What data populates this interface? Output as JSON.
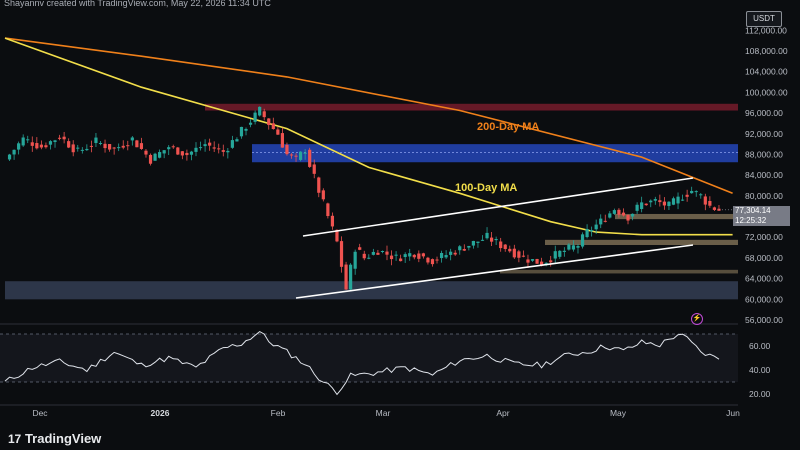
{
  "header": {
    "creator": "Shayannv created with TradingView.com, May 22, 2026 11:34 UTC"
  },
  "currency": "USDT",
  "current_price": {
    "value": "77,304.14",
    "countdown": "12:25:32"
  },
  "annotations": {
    "ma200": "200-Day MA",
    "ma100": "100-Day MA"
  },
  "footer": {
    "logo": "17",
    "brand": "TradingView"
  },
  "colors": {
    "background": "#0b0d10",
    "up": "#26a69a",
    "down": "#ef5350",
    "ma200": "#f0801a",
    "ma100": "#f2de4a",
    "red_zone": "#b2243a",
    "blue_zone": "#2447b8",
    "support_zone": "#4a5a78",
    "channel": "#ffffff",
    "tan_zone": "#8b7a5c",
    "rsi": "#dfe3ea"
  },
  "chart_data": [
    {
      "type": "candlestick",
      "xlabel": "",
      "ylabel": "",
      "x_ticks": [
        "Dec",
        "2026",
        "Feb",
        "Mar",
        "Apr",
        "May",
        "Jun"
      ],
      "y_ticks": [
        "112,000.00",
        "108,000.00",
        "104,000.00",
        "100,000.00",
        "96,000.00",
        "92,000.00",
        "88,000.00",
        "84,000.00",
        "80,000.00",
        "72,000.00",
        "68,000.00",
        "64,000.00",
        "60,000.00",
        "56,000.00"
      ],
      "ylim": [
        54000,
        116000
      ],
      "close_series_approx": [
        [
          0,
          87000
        ],
        [
          4,
          91000
        ],
        [
          8,
          89500
        ],
        [
          12,
          91500
        ],
        [
          16,
          88500
        ],
        [
          20,
          90500
        ],
        [
          24,
          89000
        ],
        [
          28,
          91000
        ],
        [
          32,
          87000
        ],
        [
          36,
          89500
        ],
        [
          40,
          88000
        ],
        [
          44,
          90000
        ],
        [
          48,
          88500
        ],
        [
          50,
          90500
        ],
        [
          52,
          92500
        ],
        [
          54,
          94500
        ],
        [
          56,
          96500
        ],
        [
          58,
          94000
        ],
        [
          60,
          92000
        ],
        [
          62,
          88000
        ],
        [
          64,
          87000
        ],
        [
          66,
          89000
        ],
        [
          67,
          86000
        ],
        [
          69,
          81000
        ],
        [
          71,
          76000
        ],
        [
          73,
          71000
        ],
        [
          75,
          62000
        ],
        [
          77,
          70000
        ],
        [
          79,
          68000
        ],
        [
          82,
          69500
        ],
        [
          86,
          68000
        ],
        [
          90,
          69000
        ],
        [
          94,
          67500
        ],
        [
          98,
          69000
        ],
        [
          102,
          70500
        ],
        [
          106,
          72000
        ],
        [
          110,
          70000
        ],
        [
          114,
          68000
        ],
        [
          118,
          67000
        ],
        [
          122,
          69000
        ],
        [
          126,
          70500
        ],
        [
          128,
          73000
        ],
        [
          131,
          75000
        ],
        [
          134,
          77500
        ],
        [
          137,
          76000
        ],
        [
          140,
          78500
        ],
        [
          143,
          79000
        ],
        [
          146,
          78000
        ],
        [
          149,
          80000
        ],
        [
          151,
          81000
        ],
        [
          153,
          80000
        ],
        [
          155,
          78000
        ],
        [
          157,
          77304
        ]
      ],
      "ma200_approx": [
        [
          0,
          110500
        ],
        [
          30,
          107000
        ],
        [
          62,
          103000
        ],
        [
          100,
          96500
        ],
        [
          140,
          87500
        ],
        [
          160,
          80500
        ]
      ],
      "ma100_approx": [
        [
          0,
          110500
        ],
        [
          30,
          101000
        ],
        [
          62,
          93000
        ],
        [
          80,
          85500
        ],
        [
          100,
          80500
        ],
        [
          120,
          75000
        ],
        [
          130,
          73000
        ],
        [
          140,
          72500
        ],
        [
          160,
          72500
        ]
      ],
      "zones": [
        {
          "name": "resistance-red",
          "from": 96500,
          "to": 97800
        },
        {
          "name": "resistance-blue",
          "from": 86500,
          "to": 90000
        },
        {
          "name": "support-demand",
          "from": 60000,
          "to": 63500
        },
        {
          "name": "support-tan-1",
          "from": 75500,
          "to": 76500
        },
        {
          "name": "support-tan-2",
          "from": 70500,
          "to": 71500
        },
        {
          "name": "support-tan-3",
          "from": 65000,
          "to": 65700
        }
      ],
      "channel": {
        "lower": [
          [
            62,
            59600
          ],
          [
            157,
            70000
          ]
        ],
        "upper": [
          [
            62,
            72800
          ],
          [
            157,
            83000
          ]
        ]
      }
    },
    {
      "type": "line",
      "name": "RSI",
      "y_ticks": [
        "60.00",
        "40.00",
        "20.00"
      ],
      "ylim": [
        10,
        80
      ],
      "levels": [
        70,
        30
      ],
      "values_approx": [
        [
          0,
          30
        ],
        [
          6,
          42
        ],
        [
          12,
          47
        ],
        [
          18,
          40
        ],
        [
          24,
          55
        ],
        [
          30,
          44
        ],
        [
          36,
          50
        ],
        [
          42,
          42
        ],
        [
          48,
          58
        ],
        [
          52,
          62
        ],
        [
          56,
          72
        ],
        [
          58,
          64
        ],
        [
          62,
          55
        ],
        [
          66,
          45
        ],
        [
          70,
          30
        ],
        [
          73,
          22
        ],
        [
          76,
          35
        ],
        [
          82,
          38
        ],
        [
          88,
          42
        ],
        [
          94,
          36
        ],
        [
          100,
          48
        ],
        [
          106,
          52
        ],
        [
          112,
          45
        ],
        [
          118,
          44
        ],
        [
          124,
          53
        ],
        [
          128,
          55
        ],
        [
          132,
          60
        ],
        [
          136,
          56
        ],
        [
          140,
          63
        ],
        [
          144,
          61
        ],
        [
          148,
          70
        ],
        [
          150,
          66
        ],
        [
          153,
          55
        ],
        [
          157,
          49
        ]
      ]
    }
  ]
}
